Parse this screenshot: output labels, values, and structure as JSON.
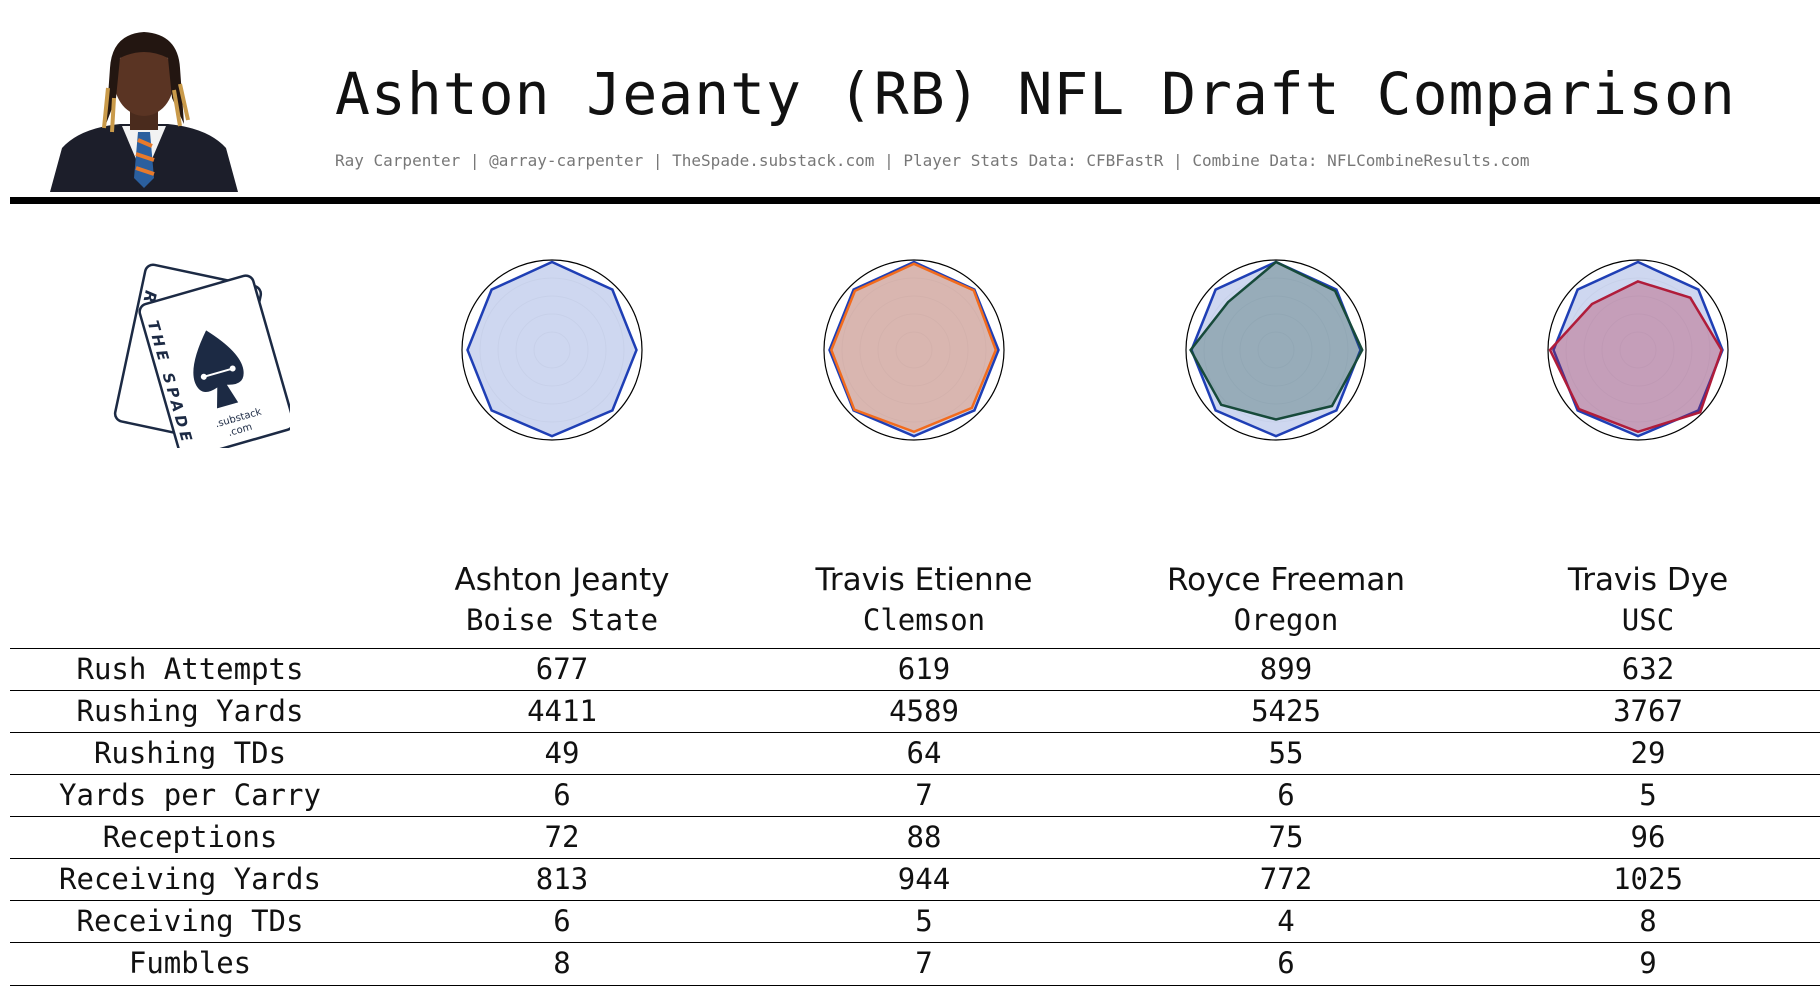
{
  "header": {
    "title": "Ashton Jeanty (RB) NFL Draft Comparison",
    "credits": "Ray Carpenter | @array-carpenter | TheSpade.substack.com | Player Stats Data: CFBFastR | Combine Data: NFLCombineResults.com"
  },
  "logo": {
    "card_back_text": "RC",
    "card_front_text": "THE SPADE",
    "substack_text": ".substack",
    "com_text": ".com"
  },
  "colors": {
    "jeanty": "#1f3fb5",
    "etienne": "#f26b1d",
    "freeman": "#174a3a",
    "dye": "#b01c3a",
    "jeanty_fill": "#c9d3ee",
    "grid": "#bbbbbb"
  },
  "chart_data": {
    "type": "radar",
    "axes_count": 8,
    "scale": [
      0,
      1
    ],
    "charts": [
      {
        "series": [
          {
            "color_key": "jeanty",
            "values": [
              1.0,
              0.97,
              0.96,
              0.97,
              0.98,
              0.97,
              0.96,
              0.97
            ]
          }
        ]
      },
      {
        "series": [
          {
            "color_key": "jeanty",
            "values": [
              1.0,
              0.97,
              0.96,
              0.97,
              0.98,
              0.97,
              0.96,
              0.97
            ]
          },
          {
            "color_key": "etienne",
            "values": [
              0.98,
              0.96,
              0.93,
              0.93,
              0.93,
              0.96,
              0.94,
              0.95
            ]
          }
        ]
      },
      {
        "series": [
          {
            "color_key": "jeanty",
            "values": [
              1.0,
              0.97,
              0.96,
              0.97,
              0.98,
              0.97,
              0.96,
              0.97
            ]
          },
          {
            "color_key": "freeman",
            "values": [
              1.0,
              0.95,
              0.98,
              0.9,
              0.79,
              0.88,
              0.97,
              0.77
            ]
          }
        ]
      },
      {
        "series": [
          {
            "color_key": "jeanty",
            "values": [
              1.0,
              0.97,
              0.96,
              0.97,
              0.98,
              0.97,
              0.96,
              0.97
            ]
          },
          {
            "color_key": "dye",
            "values": [
              0.78,
              0.84,
              0.95,
              1.0,
              0.93,
              0.95,
              1.0,
              0.74
            ]
          }
        ]
      }
    ]
  },
  "table": {
    "players": [
      {
        "name": "Ashton Jeanty",
        "school": "Boise State"
      },
      {
        "name": "Travis Etienne",
        "school": "Clemson"
      },
      {
        "name": "Royce Freeman",
        "school": "Oregon"
      },
      {
        "name": "Travis Dye",
        "school": "USC"
      }
    ],
    "rows": [
      {
        "label": "Rush Attempts",
        "values": [
          "677",
          "619",
          "899",
          "632"
        ]
      },
      {
        "label": "Rushing Yards",
        "values": [
          "4411",
          "4589",
          "5425",
          "3767"
        ]
      },
      {
        "label": "Rushing TDs",
        "values": [
          "49",
          "64",
          "55",
          "29"
        ]
      },
      {
        "label": "Yards per Carry",
        "values": [
          "6",
          "7",
          "6",
          "5"
        ]
      },
      {
        "label": "Receptions",
        "values": [
          "72",
          "88",
          "75",
          "96"
        ]
      },
      {
        "label": "Receiving Yards",
        "values": [
          "813",
          "944",
          "772",
          "1025"
        ]
      },
      {
        "label": "Receiving TDs",
        "values": [
          "6",
          "5",
          "4",
          "8"
        ]
      },
      {
        "label": "Fumbles",
        "values": [
          "8",
          "7",
          "6",
          "9"
        ]
      }
    ]
  }
}
